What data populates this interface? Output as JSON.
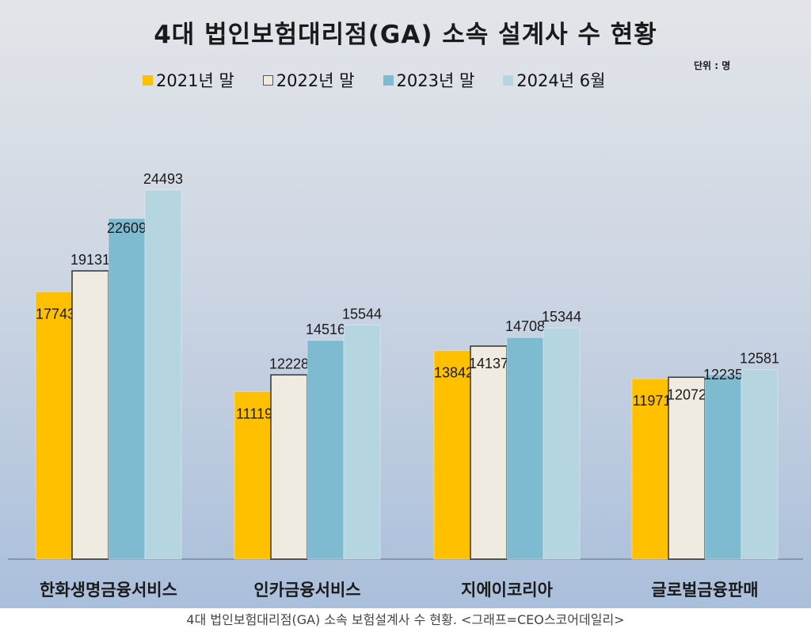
{
  "chart_data": {
    "type": "bar",
    "title": "4대 법인보험대리점(GA) 소속 설계사 수 현황",
    "unit": "단위 : 명",
    "categories": [
      "한화생명금융서비스",
      "인카금융서비스",
      "지에이코리아",
      "글로벌금융판매"
    ],
    "series": [
      {
        "name": "2021년 말",
        "color": "#ffc000",
        "values": [
          17743,
          11119,
          13842,
          11971
        ]
      },
      {
        "name": "2022년 말",
        "color": "#efebe0",
        "values": [
          19131,
          12228,
          14137,
          12072
        ]
      },
      {
        "name": "2023년 말",
        "color": "#7ebad0",
        "values": [
          22609,
          14516,
          14708,
          12235
        ]
      },
      {
        "name": "2024년 6월",
        "color": "#b5d5e0",
        "values": [
          24493,
          15544,
          15344,
          12581
        ]
      }
    ],
    "ylim": [
      0,
      26500
    ],
    "grid": false,
    "legend_position": "top"
  },
  "caption": "4대 법인보험대리점(GA) 소속 보험설계사 수 현황. <그래프=CEO스코어데일리>"
}
